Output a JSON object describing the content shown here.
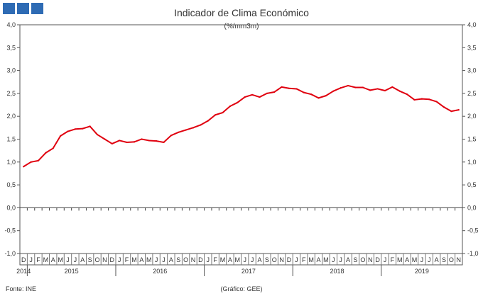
{
  "chart_data": {
    "type": "line",
    "title": "Indicador de Clima Económico",
    "subtitle": "(%/mm3m)",
    "source": "Fonte: INE",
    "credit": "(Gráfico: GEE)",
    "ylim": [
      -1.0,
      4.0
    ],
    "yticks": [
      "4,0",
      "3,5",
      "3,0",
      "2,5",
      "2,0",
      "1,5",
      "1,0",
      "0,5",
      "0,0",
      "-0,5",
      "-1,0"
    ],
    "month_labels": [
      "D",
      "J",
      "F",
      "M",
      "A",
      "M",
      "J",
      "J",
      "A",
      "S",
      "O",
      "N",
      "D",
      "J",
      "F",
      "M",
      "A",
      "M",
      "J",
      "J",
      "A",
      "S",
      "O",
      "N",
      "D",
      "J",
      "F",
      "M",
      "A",
      "M",
      "J",
      "J",
      "A",
      "S",
      "O",
      "N",
      "D",
      "J",
      "F",
      "M",
      "A",
      "M",
      "J",
      "J",
      "A",
      "S",
      "O",
      "N",
      "D",
      "J",
      "F",
      "M",
      "A",
      "M",
      "J",
      "J",
      "A",
      "S",
      "O",
      "N"
    ],
    "years": [
      {
        "label": "2014",
        "start": 0,
        "end": 0
      },
      {
        "label": "2015",
        "start": 1,
        "end": 12
      },
      {
        "label": "2016",
        "start": 13,
        "end": 24
      },
      {
        "label": "2017",
        "start": 25,
        "end": 36
      },
      {
        "label": "2018",
        "start": 37,
        "end": 48
      },
      {
        "label": "2019",
        "start": 49,
        "end": 59
      }
    ],
    "series": [
      {
        "color": "#e0000f",
        "values": [
          0.9,
          1.0,
          1.03,
          1.2,
          1.3,
          1.57,
          1.67,
          1.72,
          1.73,
          1.78,
          1.6,
          1.5,
          1.4,
          1.47,
          1.43,
          1.44,
          1.5,
          1.47,
          1.46,
          1.43,
          1.58,
          1.65,
          1.7,
          1.75,
          1.81,
          1.9,
          2.03,
          2.08,
          2.22,
          2.3,
          2.42,
          2.47,
          2.42,
          2.5,
          2.53,
          2.64,
          2.61,
          2.6,
          2.52,
          2.48,
          2.4,
          2.45,
          2.55,
          2.62,
          2.67,
          2.63,
          2.63,
          2.57,
          2.6,
          2.56,
          2.64,
          2.55,
          2.48,
          2.36,
          2.38,
          2.37,
          2.32,
          2.2,
          2.11,
          2.14
        ]
      }
    ]
  },
  "header": {
    "colors": [
      "#2e6bb4",
      "#2e6bb4",
      "#2e6bb4"
    ]
  }
}
